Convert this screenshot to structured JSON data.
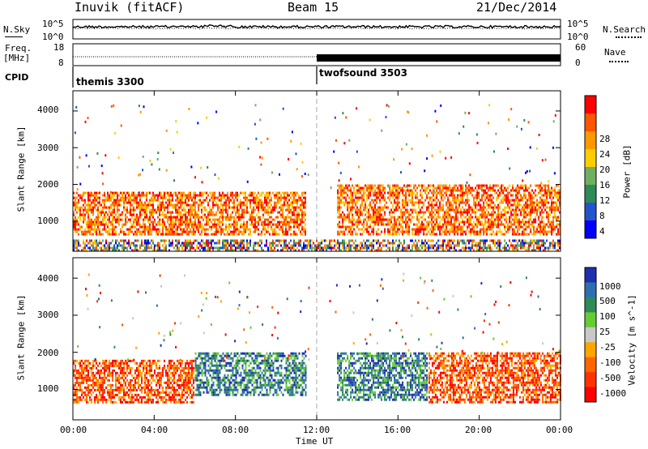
{
  "header": {
    "station": "Inuvik (fitACF)",
    "beam": "Beam 15",
    "date": "21/Dec/2014"
  },
  "left_labels": {
    "nsky": "N.Sky",
    "freq": "Freq.",
    "freq_unit": "[MHz]",
    "cpid": "CPID"
  },
  "right_labels": {
    "nsearch": "N.Search",
    "nave": "Nave"
  },
  "noise_panel": {
    "left_ticks": [
      "10^5",
      "10^0"
    ],
    "right_ticks": [
      "10^5",
      "10^0"
    ]
  },
  "freq_panel": {
    "left_ticks": [
      "18",
      "8"
    ],
    "right_ticks": [
      "60",
      "0"
    ]
  },
  "cpid_panel": {
    "modes": [
      {
        "name": "themis 3300",
        "start_hour": 0
      },
      {
        "name": "twofsound 3503",
        "start_hour": 12
      }
    ]
  },
  "colors": {
    "power_scale": [
      "#0000ff",
      "#2255cc",
      "#2e8b57",
      "#6fb060",
      "#ffcc00",
      "#ff9900",
      "#ff5500",
      "#ff0000"
    ],
    "velocity_scale": [
      "#ff0000",
      "#ff3300",
      "#ff6600",
      "#ffa500",
      "#c8c8c8",
      "#66cc33",
      "#2e8b57",
      "#2f6fb0",
      "#1e2fb0"
    ],
    "ground_scatter": "#c8c8c8"
  },
  "chart_data": [
    {
      "type": "heatmap",
      "title": "",
      "xlabel": "",
      "ylabel": "Slant Range [km]",
      "xlim": [
        0,
        24
      ],
      "ylim": [
        180,
        4550
      ],
      "y_ticks": [
        "1000",
        "2000",
        "3000",
        "4000"
      ],
      "colorbar": {
        "label": "Power [dB]",
        "ticks": [
          "4",
          "8",
          "12",
          "16",
          "20",
          "24",
          "28"
        ],
        "range": [
          0,
          30
        ]
      },
      "scatter_regions": [
        {
          "start_hour": 0.0,
          "end_hour": 11.5,
          "range_low_km": 600,
          "range_high_km": 1800,
          "level": "high"
        },
        {
          "start_hour": 13.0,
          "end_hour": 24.0,
          "range_low_km": 600,
          "range_high_km": 2000,
          "level": "high"
        },
        {
          "start_hour": 0.0,
          "end_hour": 24.0,
          "range_low_km": 200,
          "range_high_km": 500,
          "level": "mixed"
        }
      ]
    },
    {
      "type": "heatmap",
      "title": "",
      "xlabel": "Time UT",
      "ylabel": "Slant Range [km]",
      "xlim": [
        0,
        24
      ],
      "ylim": [
        180,
        4550
      ],
      "y_ticks": [
        "1000",
        "2000",
        "3000",
        "4000"
      ],
      "x_ticks": [
        "00:00",
        "04:00",
        "08:00",
        "12:00",
        "16:00",
        "20:00",
        "00:00"
      ],
      "colorbar": {
        "label": "Velocity [m s^-1]",
        "ticks": [
          "1000",
          "500",
          "100",
          "25",
          "-25",
          "-100",
          "-500",
          "-1000"
        ],
        "range": [
          -1000,
          1000
        ]
      },
      "scatter_regions": [
        {
          "start_hour": 0.0,
          "end_hour": 6.0,
          "range_low_km": 600,
          "range_high_km": 1800,
          "level": "negative"
        },
        {
          "start_hour": 6.0,
          "end_hour": 11.5,
          "range_low_km": 800,
          "range_high_km": 2000,
          "level": "positive"
        },
        {
          "start_hour": 13.0,
          "end_hour": 17.5,
          "range_low_km": 700,
          "range_high_km": 2000,
          "level": "positive"
        },
        {
          "start_hour": 17.5,
          "end_hour": 24.0,
          "range_low_km": 600,
          "range_high_km": 2000,
          "level": "negative"
        }
      ]
    }
  ]
}
